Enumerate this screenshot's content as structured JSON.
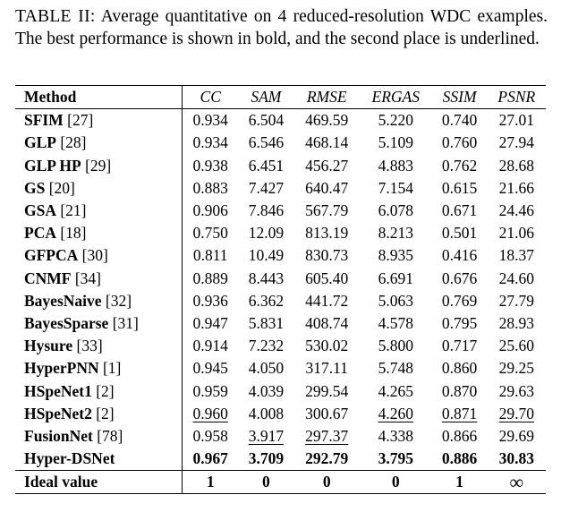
{
  "caption": {
    "label": "TABLE II:",
    "text": "Average quantitative on 4 reduced-resolution WDC examples. The best performance is shown in bold, and the second place is underlined."
  },
  "columns": [
    "Method",
    "CC",
    "SAM",
    "RMSE",
    "ERGAS",
    "SSIM",
    "PSNR"
  ],
  "rows": [
    {
      "name": "SFIM",
      "ref": "[27]",
      "values": [
        "0.934",
        "6.504",
        "469.59",
        "5.220",
        "0.740",
        "27.01"
      ]
    },
    {
      "name": "GLP",
      "ref": "[28]",
      "values": [
        "0.934",
        "6.546",
        "468.14",
        "5.109",
        "0.760",
        "27.94"
      ]
    },
    {
      "name": "GLP HP",
      "ref": "[29]",
      "values": [
        "0.938",
        "6.451",
        "456.27",
        "4.883",
        "0.762",
        "28.68"
      ]
    },
    {
      "name": "GS",
      "ref": "[20]",
      "values": [
        "0.883",
        "7.427",
        "640.47",
        "7.154",
        "0.615",
        "21.66"
      ]
    },
    {
      "name": "GSA",
      "ref": "[21]",
      "values": [
        "0.906",
        "7.846",
        "567.79",
        "6.078",
        "0.671",
        "24.46"
      ]
    },
    {
      "name": "PCA",
      "ref": "[18]",
      "values": [
        "0.750",
        "12.09",
        "813.19",
        "8.213",
        "0.501",
        "21.06"
      ]
    },
    {
      "name": "GFPCA",
      "ref": "[30]",
      "values": [
        "0.811",
        "10.49",
        "830.73",
        "8.935",
        "0.416",
        "18.37"
      ]
    },
    {
      "name": "CNMF",
      "ref": "[34]",
      "values": [
        "0.889",
        "8.443",
        "605.40",
        "6.691",
        "0.676",
        "24.60"
      ]
    },
    {
      "name": "BayesNaive",
      "ref": "[32]",
      "values": [
        "0.936",
        "6.362",
        "441.72",
        "5.063",
        "0.769",
        "27.79"
      ]
    },
    {
      "name": "BayesSparse",
      "ref": "[31]",
      "values": [
        "0.947",
        "5.831",
        "408.74",
        "4.578",
        "0.795",
        "28.93"
      ]
    },
    {
      "name": "Hysure",
      "ref": "[33]",
      "values": [
        "0.914",
        "7.232",
        "530.02",
        "5.800",
        "0.717",
        "25.60"
      ]
    },
    {
      "name": "HyperPNN",
      "ref": "[1]",
      "values": [
        "0.945",
        "4.050",
        "317.11",
        "5.748",
        "0.860",
        "29.25"
      ]
    },
    {
      "name": "HSpeNet1",
      "ref": "[2]",
      "values": [
        "0.959",
        "4.039",
        "299.54",
        "4.265",
        "0.870",
        "29.63"
      ]
    },
    {
      "name": "HSpeNet2",
      "ref": "[2]",
      "values": [
        "0.960",
        "4.008",
        "300.67",
        "4.260",
        "0.871",
        "29.70"
      ]
    },
    {
      "name": "FusionNet",
      "ref": "[78]",
      "values": [
        "0.958",
        "3.917",
        "297.37",
        "4.338",
        "0.866",
        "29.69"
      ]
    },
    {
      "name": "Hyper-DSNet",
      "ref": "",
      "values": [
        "0.967",
        "3.709",
        "292.79",
        "3.795",
        "0.886",
        "30.83"
      ]
    }
  ],
  "ideal": {
    "name": "Ideal value",
    "values": [
      "1",
      "0",
      "0",
      "0",
      "1",
      "∞"
    ]
  }
}
